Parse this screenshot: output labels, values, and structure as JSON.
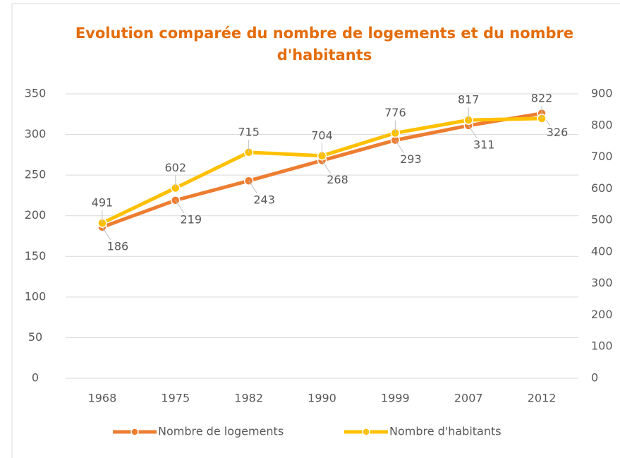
{
  "chart_data": {
    "type": "line",
    "title": "Evolution comparée du nombre de logements et du nombre d'habitants",
    "categories": [
      "1968",
      "1975",
      "1982",
      "1990",
      "1999",
      "2007",
      "2012"
    ],
    "series": [
      {
        "name": "Nombre de logements",
        "color": "#ED7D31",
        "values": [
          186,
          219,
          243,
          268,
          293,
          311,
          326
        ]
      },
      {
        "name": "Nombre d'habitants",
        "color": "#FFC000",
        "axis": "y2",
        "values": [
          491,
          602,
          715,
          704,
          776,
          817,
          822
        ]
      }
    ],
    "ylim": [
      0,
      350
    ],
    "yticks": [
      0,
      50,
      100,
      150,
      200,
      250,
      300,
      350
    ],
    "y2lim": [
      0,
      900
    ],
    "y2ticks": [
      0,
      100,
      200,
      300,
      400,
      500,
      600,
      700,
      800,
      900
    ],
    "grid": true,
    "legend": "bottom"
  }
}
